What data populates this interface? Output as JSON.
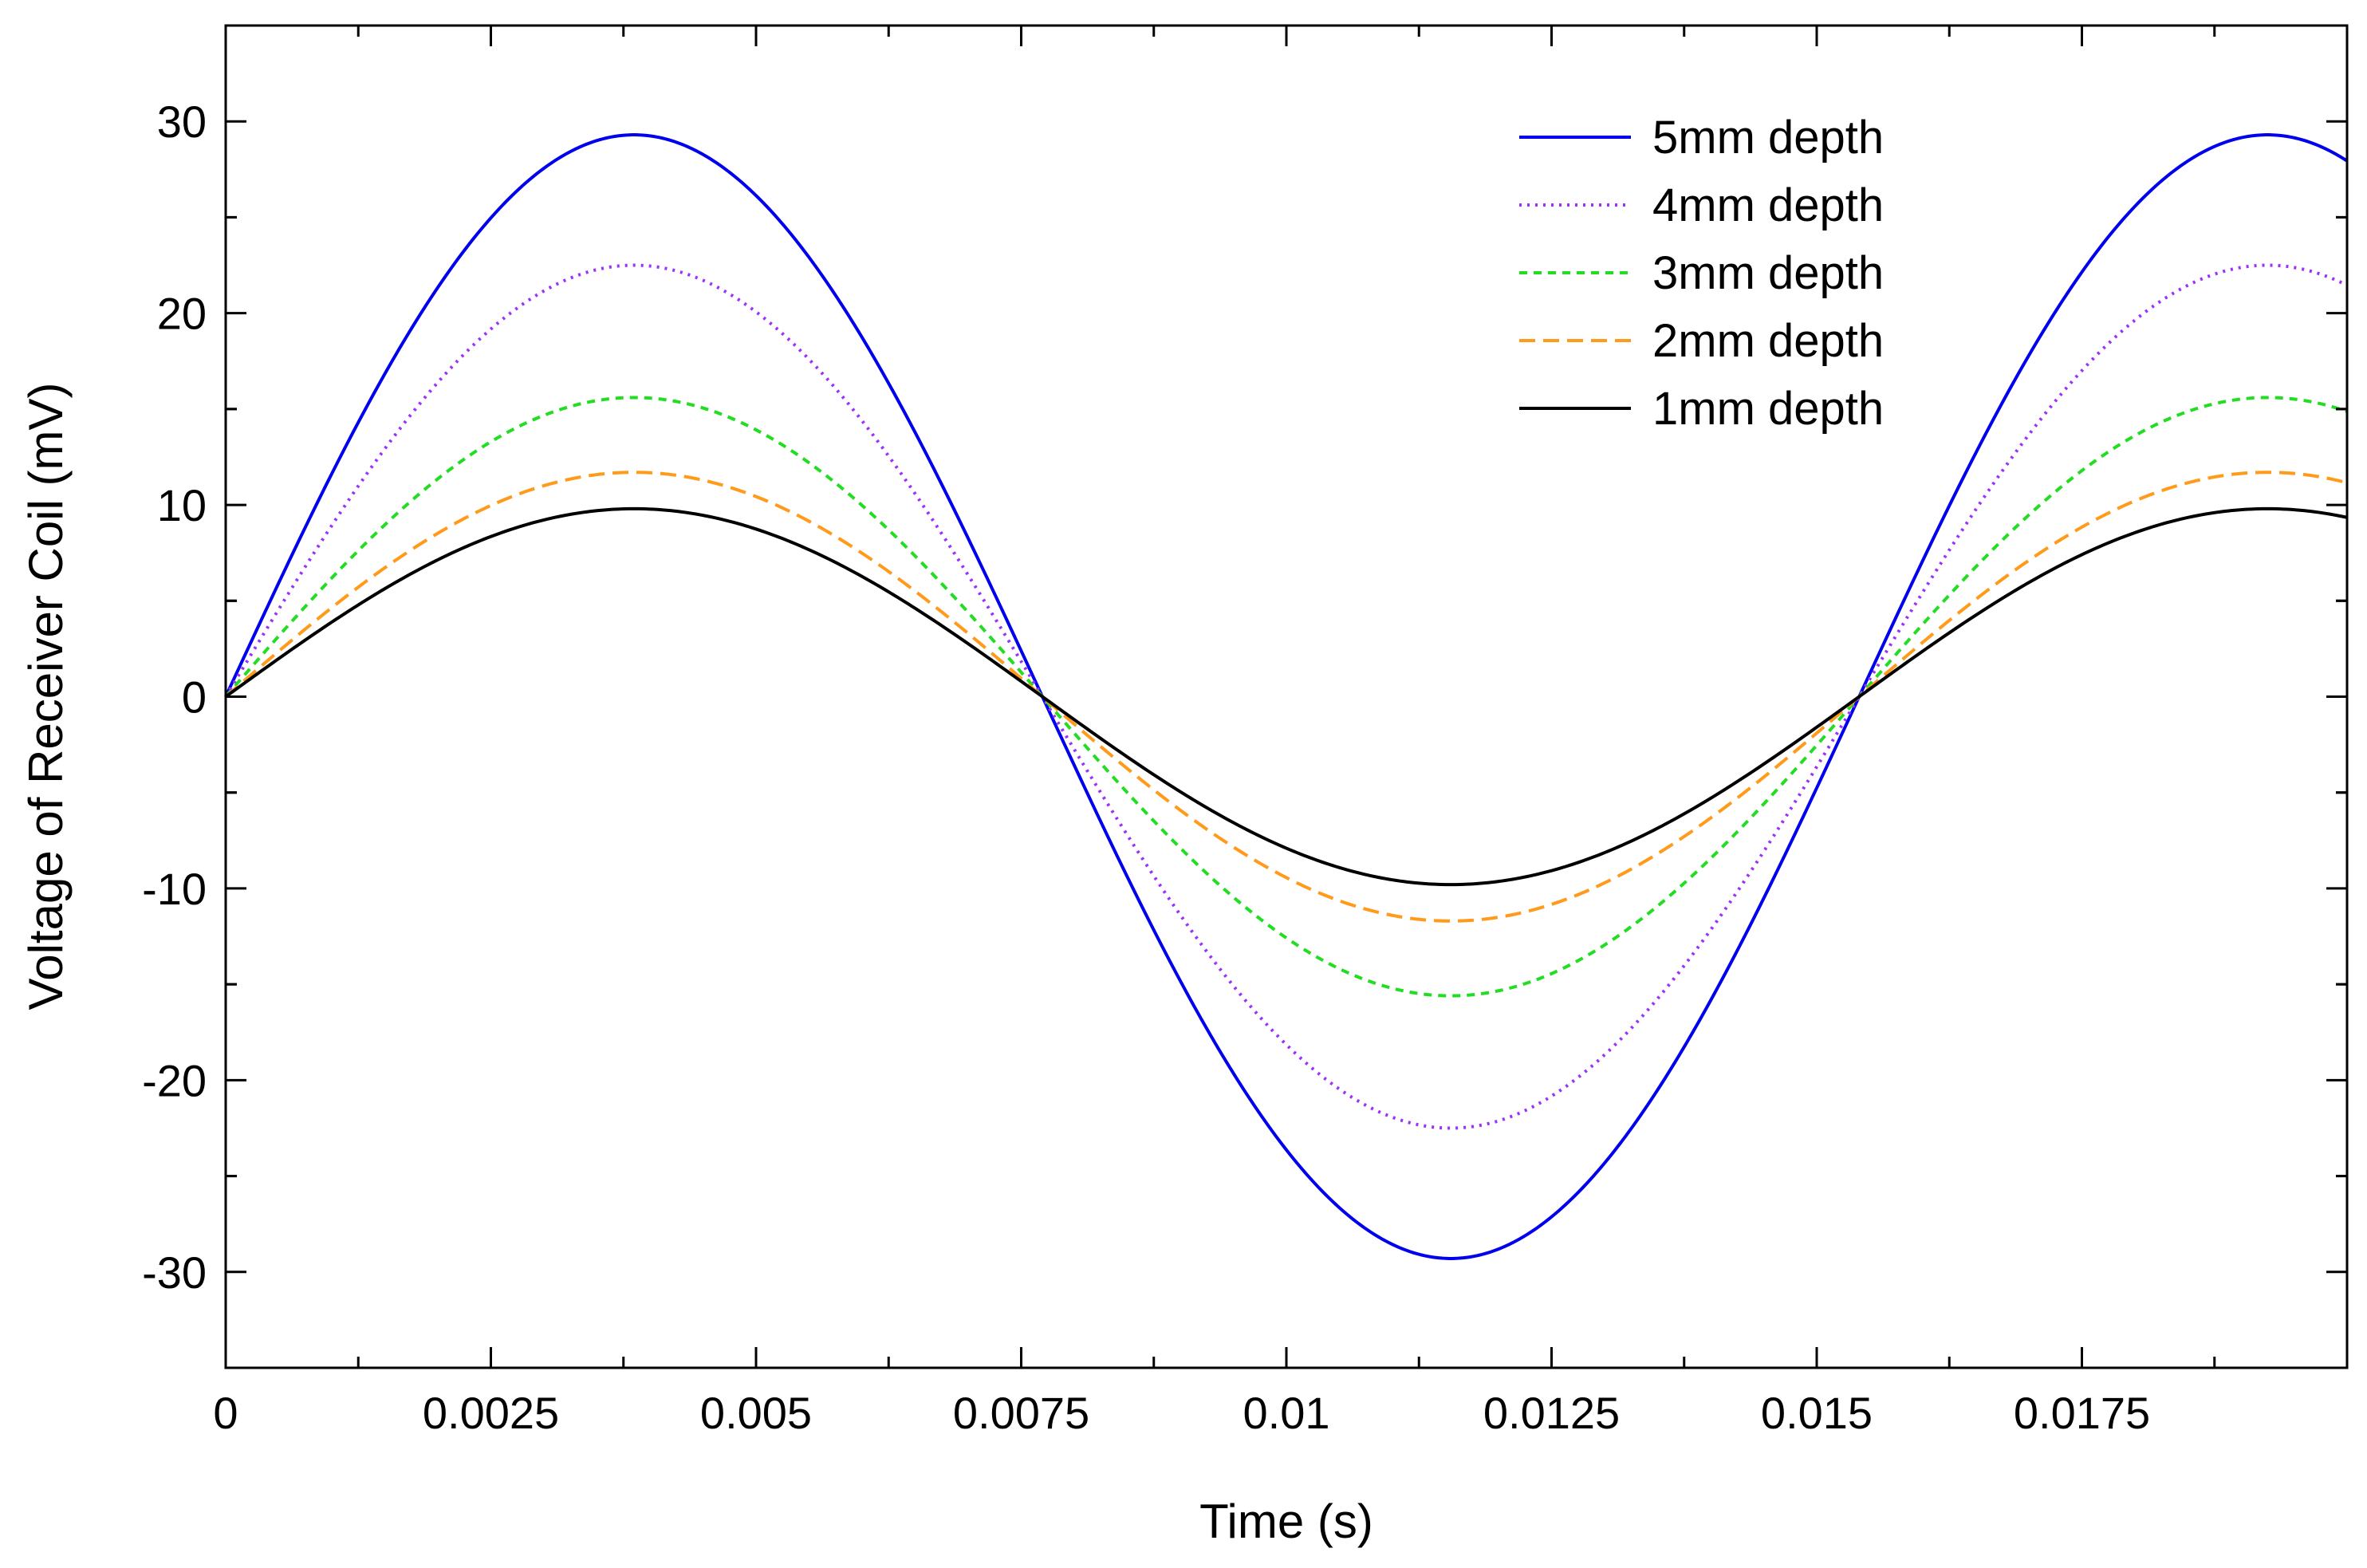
{
  "chart_data": {
    "type": "line",
    "title": "",
    "xlabel": "Time (s)",
    "ylabel": "Voltage of Receiver Coil (mV)",
    "xlim": [
      0,
      0.02
    ],
    "ylim": [
      -35,
      35
    ],
    "xticks": [
      0,
      0.0025,
      0.005,
      0.0075,
      0.01,
      0.0125,
      0.015,
      0.0175
    ],
    "xtick_labels": [
      "0",
      "0.0025",
      "0.005",
      "0.0075",
      "0.01",
      "0.0125",
      "0.015",
      "0.0175"
    ],
    "yticks": [
      30,
      20,
      10,
      0,
      -10,
      -20,
      -30
    ],
    "ytick_labels": [
      "30",
      "20",
      "10",
      "0",
      "-10",
      "-20",
      "-30"
    ],
    "grid": false,
    "legend_position": "top-right",
    "period_s": 0.0154,
    "series": [
      {
        "name": "5mm depth",
        "amplitude": 29.3,
        "color": "#0000ee",
        "style": "solid"
      },
      {
        "name": "4mm depth",
        "amplitude": 22.5,
        "color": "#9b30ff",
        "style": "dotted"
      },
      {
        "name": "3mm depth",
        "amplitude": 15.6,
        "color": "#22dd22",
        "style": "short-dash"
      },
      {
        "name": "2mm depth",
        "amplitude": 11.7,
        "color": "#ff9a1a",
        "style": "dash"
      },
      {
        "name": "1mm depth",
        "amplitude": 9.8,
        "color": "#000000",
        "style": "solid"
      }
    ]
  }
}
